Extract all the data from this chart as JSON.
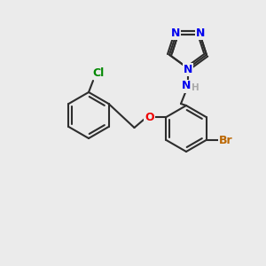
{
  "background_color": "#ebebeb",
  "bond_color": "#2d2d2d",
  "atom_colors": {
    "N": "#0000ee",
    "O": "#ee0000",
    "Cl": "#008800",
    "Br": "#bb6600",
    "H": "#aaaaaa",
    "C": "#2d2d2d"
  },
  "lw": 1.5,
  "fs": 9.0
}
